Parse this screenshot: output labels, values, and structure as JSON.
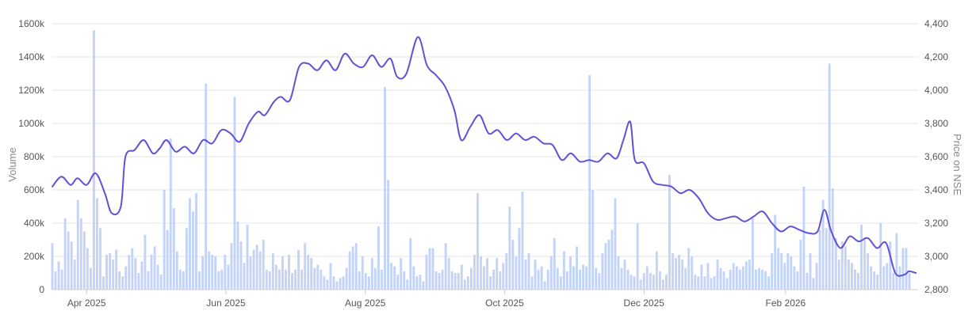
{
  "chart_data": {
    "type": "bar+line",
    "y_left_label": "Volume",
    "y_right_label": "Price on NSE",
    "y_left_ticks": [
      "0",
      "200k",
      "400k",
      "600k",
      "800k",
      "1000k",
      "1200k",
      "1400k",
      "1600k"
    ],
    "y_left_range": [
      0,
      1600000
    ],
    "y_right_ticks": [
      "2,800",
      "3,000",
      "3,200",
      "3,400",
      "3,600",
      "3,800",
      "4,000",
      "4,200",
      "4,400"
    ],
    "y_right_range": [
      2800,
      4400
    ],
    "x_range": [
      "2025-03-17",
      "2026-03-31"
    ],
    "x_ticks": [
      {
        "label": "Apr 2025",
        "date": "2025-04-01"
      },
      {
        "label": "Jun 2025",
        "date": "2025-06-01"
      },
      {
        "label": "Aug 2025",
        "date": "2025-08-01"
      },
      {
        "label": "Oct 2025",
        "date": "2025-10-01"
      },
      {
        "label": "Dec 2025",
        "date": "2025-12-01"
      },
      {
        "label": "Feb 2026",
        "date": "2026-02-01"
      }
    ],
    "grid": true,
    "colors": {
      "volume": "#c4d4f8",
      "price": "#6251d6"
    },
    "volume_series": {
      "name": "Volume",
      "start_date": "2025-03-17",
      "interval_days": 1.4,
      "values": [
        280000,
        110000,
        170000,
        120000,
        430000,
        350000,
        290000,
        180000,
        540000,
        430000,
        350000,
        250000,
        130000,
        1560000,
        550000,
        370000,
        80000,
        210000,
        220000,
        180000,
        240000,
        110000,
        80000,
        140000,
        210000,
        250000,
        190000,
        100000,
        170000,
        330000,
        110000,
        210000,
        260000,
        150000,
        90000,
        600000,
        360000,
        910000,
        490000,
        230000,
        120000,
        110000,
        370000,
        550000,
        470000,
        580000,
        110000,
        200000,
        1240000,
        230000,
        210000,
        200000,
        110000,
        120000,
        210000,
        150000,
        280000,
        1160000,
        410000,
        290000,
        160000,
        390000,
        200000,
        240000,
        270000,
        230000,
        300000,
        120000,
        110000,
        220000,
        150000,
        120000,
        200000,
        120000,
        210000,
        100000,
        120000,
        240000,
        120000,
        280000,
        210000,
        190000,
        130000,
        150000,
        120000,
        80000,
        60000,
        160000,
        80000,
        50000,
        70000,
        80000,
        130000,
        230000,
        260000,
        280000,
        110000,
        200000,
        100000,
        80000,
        190000,
        130000,
        380000,
        120000,
        1220000,
        660000,
        160000,
        140000,
        90000,
        190000,
        110000,
        60000,
        310000,
        140000,
        80000,
        90000,
        50000,
        210000,
        250000,
        250000,
        110000,
        100000,
        120000,
        280000,
        190000,
        110000,
        100000,
        100000,
        150000,
        60000,
        80000,
        130000,
        210000,
        580000,
        200000,
        140000,
        190000,
        80000,
        120000,
        190000,
        110000,
        160000,
        220000,
        500000,
        300000,
        200000,
        370000,
        590000,
        180000,
        220000,
        80000,
        180000,
        120000,
        140000,
        50000,
        120000,
        200000,
        310000,
        130000,
        80000,
        230000,
        110000,
        200000,
        140000,
        260000,
        120000,
        150000,
        140000,
        1290000,
        600000,
        130000,
        100000,
        220000,
        280000,
        300000,
        360000,
        550000,
        200000,
        130000,
        180000,
        120000,
        90000,
        80000,
        400000,
        60000,
        100000,
        140000,
        100000,
        90000,
        230000,
        110000,
        60000,
        90000,
        690000,
        220000,
        190000,
        210000,
        180000,
        130000,
        250000,
        200000,
        90000,
        80000,
        150000,
        80000,
        160000,
        70000,
        80000,
        180000,
        130000,
        110000,
        70000,
        120000,
        160000,
        140000,
        120000,
        140000,
        170000,
        180000,
        430000,
        120000,
        130000,
        120000,
        110000,
        80000,
        220000,
        450000,
        250000,
        220000,
        160000,
        220000,
        200000,
        140000,
        110000,
        300000,
        620000,
        100000,
        220000,
        70000,
        160000,
        360000,
        540000,
        370000,
        1360000,
        610000,
        310000,
        180000,
        290000,
        260000,
        180000,
        160000,
        120000,
        100000,
        390000,
        300000,
        220000,
        140000,
        110000,
        90000,
        400000,
        140000,
        160000,
        290000,
        100000,
        340000,
        140000,
        250000,
        250000,
        100000
      ]
    },
    "price_series": {
      "name": "Price on NSE",
      "points": [
        [
          "2025-03-17",
          3420
        ],
        [
          "2025-03-21",
          3480
        ],
        [
          "2025-03-25",
          3430
        ],
        [
          "2025-03-28",
          3470
        ],
        [
          "2025-04-01",
          3430
        ],
        [
          "2025-04-05",
          3500
        ],
        [
          "2025-04-09",
          3380
        ],
        [
          "2025-04-12",
          3260
        ],
        [
          "2025-04-16",
          3300
        ],
        [
          "2025-04-18",
          3600
        ],
        [
          "2025-04-22",
          3640
        ],
        [
          "2025-04-26",
          3700
        ],
        [
          "2025-04-30",
          3620
        ],
        [
          "2025-05-03",
          3650
        ],
        [
          "2025-05-06",
          3700
        ],
        [
          "2025-05-10",
          3630
        ],
        [
          "2025-05-14",
          3660
        ],
        [
          "2025-05-18",
          3620
        ],
        [
          "2025-05-22",
          3700
        ],
        [
          "2025-05-26",
          3680
        ],
        [
          "2025-05-30",
          3760
        ],
        [
          "2025-06-03",
          3740
        ],
        [
          "2025-06-07",
          3690
        ],
        [
          "2025-06-11",
          3800
        ],
        [
          "2025-06-15",
          3870
        ],
        [
          "2025-06-18",
          3850
        ],
        [
          "2025-06-22",
          3930
        ],
        [
          "2025-06-25",
          3960
        ],
        [
          "2025-06-29",
          3940
        ],
        [
          "2025-07-03",
          4140
        ],
        [
          "2025-07-07",
          4160
        ],
        [
          "2025-07-11",
          4120
        ],
        [
          "2025-07-15",
          4180
        ],
        [
          "2025-07-19",
          4120
        ],
        [
          "2025-07-23",
          4220
        ],
        [
          "2025-07-27",
          4160
        ],
        [
          "2025-07-31",
          4140
        ],
        [
          "2025-08-04",
          4210
        ],
        [
          "2025-08-08",
          4140
        ],
        [
          "2025-08-12",
          4190
        ],
        [
          "2025-08-15",
          4080
        ],
        [
          "2025-08-19",
          4100
        ],
        [
          "2025-08-24",
          4320
        ],
        [
          "2025-08-28",
          4150
        ],
        [
          "2025-09-01",
          4090
        ],
        [
          "2025-09-05",
          4020
        ],
        [
          "2025-09-09",
          3880
        ],
        [
          "2025-09-12",
          3700
        ],
        [
          "2025-09-16",
          3780
        ],
        [
          "2025-09-20",
          3850
        ],
        [
          "2025-09-24",
          3740
        ],
        [
          "2025-09-28",
          3760
        ],
        [
          "2025-10-02",
          3700
        ],
        [
          "2025-10-06",
          3740
        ],
        [
          "2025-10-10",
          3700
        ],
        [
          "2025-10-14",
          3720
        ],
        [
          "2025-10-18",
          3680
        ],
        [
          "2025-10-22",
          3670
        ],
        [
          "2025-10-26",
          3580
        ],
        [
          "2025-10-30",
          3620
        ],
        [
          "2025-11-03",
          3570
        ],
        [
          "2025-11-07",
          3580
        ],
        [
          "2025-11-11",
          3570
        ],
        [
          "2025-11-15",
          3620
        ],
        [
          "2025-11-19",
          3590
        ],
        [
          "2025-11-22",
          3700
        ],
        [
          "2025-11-25",
          3810
        ],
        [
          "2025-11-27",
          3580
        ],
        [
          "2025-12-01",
          3560
        ],
        [
          "2025-12-05",
          3450
        ],
        [
          "2025-12-09",
          3430
        ],
        [
          "2025-12-13",
          3420
        ],
        [
          "2025-12-17",
          3380
        ],
        [
          "2025-12-21",
          3400
        ],
        [
          "2025-12-25",
          3350
        ],
        [
          "2025-12-29",
          3260
        ],
        [
          "2026-01-02",
          3220
        ],
        [
          "2026-01-06",
          3230
        ],
        [
          "2026-01-10",
          3240
        ],
        [
          "2026-01-14",
          3210
        ],
        [
          "2026-01-18",
          3240
        ],
        [
          "2026-01-22",
          3270
        ],
        [
          "2026-01-26",
          3200
        ],
        [
          "2026-01-30",
          3150
        ],
        [
          "2026-02-03",
          3180
        ],
        [
          "2026-02-07",
          3160
        ],
        [
          "2026-02-11",
          3140
        ],
        [
          "2026-02-15",
          3150
        ],
        [
          "2026-02-18",
          3280
        ],
        [
          "2026-02-21",
          3150
        ],
        [
          "2026-02-25",
          3050
        ],
        [
          "2026-03-01",
          3120
        ],
        [
          "2026-03-05",
          3090
        ],
        [
          "2026-03-09",
          3110
        ],
        [
          "2026-03-13",
          3050
        ],
        [
          "2026-03-17",
          3080
        ],
        [
          "2026-03-21",
          2900
        ],
        [
          "2026-03-25",
          2890
        ],
        [
          "2026-03-27",
          2910
        ],
        [
          "2026-03-30",
          2900
        ]
      ]
    }
  }
}
